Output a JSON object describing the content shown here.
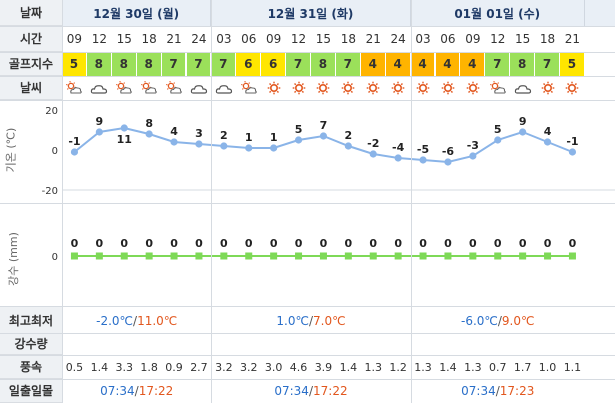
{
  "labels": {
    "date": "날짜",
    "time": "시간",
    "golf_index": "골프지수",
    "weather": "날씨",
    "temp_axis": "기온 (℃)",
    "precip_axis": "강수 (mm)",
    "minmax": "최고최저",
    "precip_amount": "강수량",
    "wind": "풍속",
    "sunrise_sunset": "일출일몰"
  },
  "days": [
    {
      "label": "12월 30일 (월)",
      "min": "-2.0℃",
      "max": "11.0℃",
      "sunrise": "07:34",
      "sunset": "17:22"
    },
    {
      "label": "12월 31일 (화)",
      "min": "1.0℃",
      "max": "7.0℃",
      "sunrise": "07:34",
      "sunset": "17:22"
    },
    {
      "label": "01월 01일 (수)",
      "min": "-6.0℃",
      "max": "9.0℃",
      "sunrise": "07:34",
      "sunset": "17:23"
    }
  ],
  "hours": [
    "09",
    "12",
    "15",
    "18",
    "21",
    "24",
    "03",
    "06",
    "09",
    "12",
    "15",
    "18",
    "21",
    "24",
    "03",
    "06",
    "09",
    "12",
    "15",
    "18",
    "21"
  ],
  "golf_index": [
    5,
    8,
    8,
    8,
    7,
    7,
    7,
    6,
    6,
    7,
    8,
    7,
    4,
    4,
    4,
    4,
    4,
    7,
    8,
    7,
    5
  ],
  "weather_icons": [
    "partly-cloudy-icon",
    "cloudy-icon",
    "partly-cloudy-icon",
    "partly-cloudy-icon",
    "partly-cloudy-icon",
    "cloudy-icon",
    "cloudy-icon",
    "partly-cloudy-icon",
    "sun-icon",
    "sun-icon",
    "sun-icon",
    "sun-icon",
    "sun-icon",
    "sun-icon",
    "sun-icon",
    "sun-icon",
    "sun-icon",
    "partly-cloudy-icon",
    "cloudy-icon",
    "sun-icon",
    "sun-icon"
  ],
  "wind": [
    "0.5",
    "1.4",
    "3.3",
    "1.8",
    "0.9",
    "2.7",
    "3.2",
    "3.2",
    "3.0",
    "4.6",
    "3.9",
    "1.4",
    "1.3",
    "1.2",
    "1.3",
    "1.4",
    "1.3",
    "0.7",
    "1.7",
    "1.0",
    "1.1"
  ],
  "colors": {
    "golf_yellow": "#ffe600",
    "golf_green": "#9be05a",
    "golf_orange": "#ffb400",
    "temp_line": "#8ab4e8",
    "precip_line": "#7ed957",
    "low": "#2a6fc9",
    "high": "#e2571e"
  },
  "chart_data": [
    {
      "type": "line",
      "x": [
        "09",
        "12",
        "15",
        "18",
        "21",
        "24",
        "03",
        "06",
        "09",
        "12",
        "15",
        "18",
        "21",
        "24",
        "03",
        "06",
        "09",
        "12",
        "15",
        "18",
        "21"
      ],
      "series": [
        {
          "values": [
            -1,
            9,
            11,
            8,
            4,
            3,
            2,
            1,
            1,
            5,
            7,
            2,
            -2,
            -4,
            -5,
            -6,
            -3,
            5,
            9,
            4,
            -1
          ]
        }
      ],
      "ylabel": "기온 (℃)",
      "ytick_labels": [
        "20",
        "0",
        "-20"
      ],
      "ylim": [
        -20,
        20
      ]
    },
    {
      "type": "line",
      "x": [
        "09",
        "12",
        "15",
        "18",
        "21",
        "24",
        "03",
        "06",
        "09",
        "12",
        "15",
        "18",
        "21",
        "24",
        "03",
        "06",
        "09",
        "12",
        "15",
        "18",
        "21"
      ],
      "series": [
        {
          "values": [
            0,
            0,
            0,
            0,
            0,
            0,
            0,
            0,
            0,
            0,
            0,
            0,
            0,
            0,
            0,
            0,
            0,
            0,
            0,
            0,
            0
          ]
        }
      ],
      "ylabel": "강수 (mm)",
      "ytick_labels": [
        "0"
      ]
    }
  ]
}
